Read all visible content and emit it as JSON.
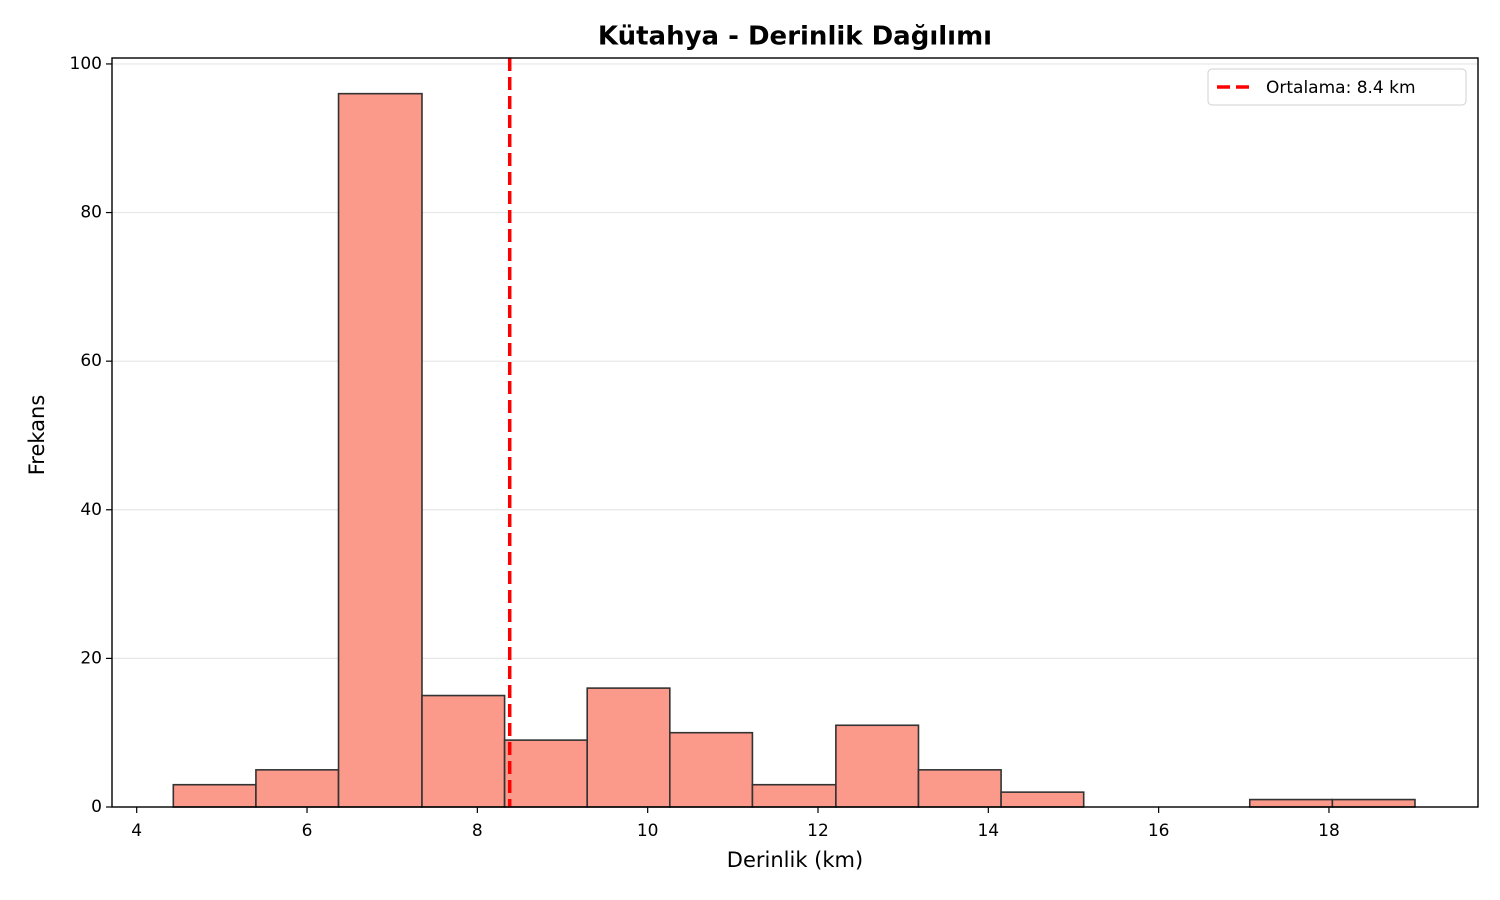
{
  "chart_data": {
    "type": "histogram",
    "title": "Kütahya - Derinlik Dağılımı",
    "xlabel": "Derinlik (km)",
    "ylabel": "Frekans",
    "bins": [
      4.43,
      5.4,
      6.37,
      7.35,
      8.32,
      9.29,
      10.26,
      11.23,
      12.21,
      13.18,
      14.15,
      15.12,
      16.09,
      17.07,
      18.04,
      19.01
    ],
    "values": [
      3,
      5,
      96,
      15,
      9,
      16,
      10,
      3,
      11,
      5,
      2,
      0,
      0,
      1,
      1
    ],
    "color": "#fb998a",
    "edgecolor": "#333333",
    "xlim": [
      3.71,
      19.75
    ],
    "xticks": [
      4,
      6,
      8,
      10,
      12,
      14,
      16,
      18
    ],
    "ylim": [
      0,
      100.8
    ],
    "yticks": [
      0,
      20,
      40,
      60,
      80,
      100
    ],
    "grid": "y",
    "mean_line": {
      "value": 8.38,
      "label": "Ortalama: 8.4 km",
      "color": "#ff0000"
    },
    "legend": "upper right"
  }
}
